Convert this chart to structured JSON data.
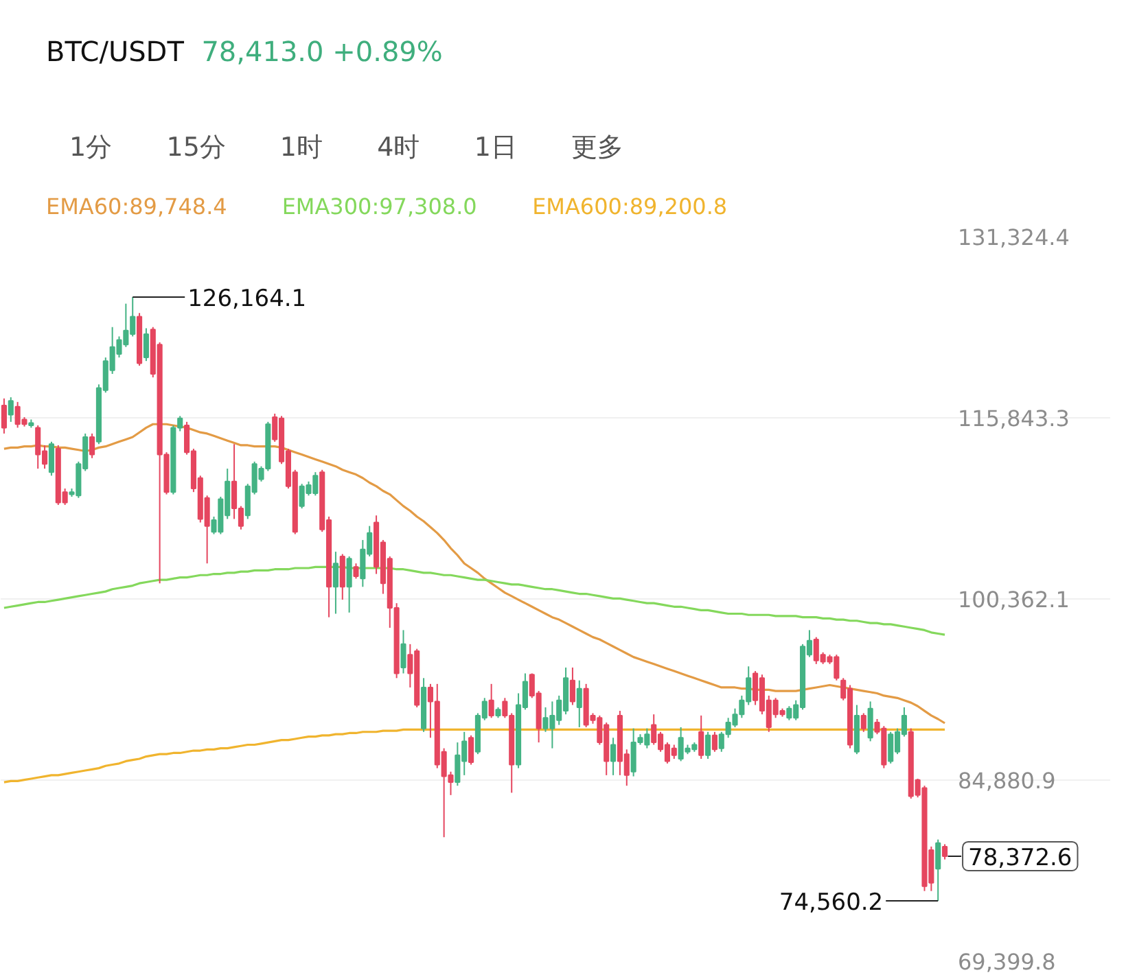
{
  "chart_data": {
    "type": "candlestick",
    "title": "BTC/USDT",
    "subtitle": "78,413.0 +0.89%",
    "categories": [
      null,
      null,
      null,
      null,
      null,
      null,
      null,
      null,
      null,
      null,
      null,
      null,
      null,
      null,
      null,
      null,
      null,
      null,
      null,
      null,
      null,
      null,
      null,
      null,
      null,
      null,
      null,
      null,
      null,
      null,
      null,
      null,
      null,
      null,
      null,
      null,
      null,
      null,
      null,
      null,
      null,
      null,
      null,
      null,
      null,
      null,
      null,
      null,
      null,
      null,
      null,
      null,
      null,
      null,
      null,
      null,
      null,
      null,
      null,
      null,
      null,
      null,
      null,
      null,
      null,
      null,
      null,
      null,
      null,
      null,
      null,
      null,
      null,
      null,
      null,
      null,
      null,
      null,
      null,
      null,
      null,
      null,
      null,
      null,
      null,
      null,
      null,
      null,
      null,
      null,
      null,
      null,
      null,
      null,
      null,
      null,
      null,
      null,
      null,
      null,
      null,
      null,
      null,
      null,
      null,
      null,
      null,
      null,
      null,
      null,
      null,
      null,
      null,
      null,
      null,
      null,
      null,
      null,
      null,
      null,
      null,
      null,
      null,
      null,
      null,
      null,
      null,
      null,
      null,
      null,
      null,
      null,
      null,
      null,
      null,
      null,
      null,
      null,
      null,
      null
    ],
    "ohlc": [
      [
        116900,
        117500,
        114500,
        115000
      ],
      [
        116100,
        117600,
        115500,
        117300
      ],
      [
        116800,
        117200,
        115000,
        115300
      ],
      [
        115700,
        115900,
        115100,
        115300
      ],
      [
        115200,
        115700,
        115000,
        115400
      ],
      [
        115000,
        115200,
        111500,
        112700
      ],
      [
        113000,
        113500,
        111500,
        111900
      ],
      [
        111200,
        113800,
        110900,
        113600
      ],
      [
        113200,
        113500,
        108400,
        108600
      ],
      [
        109500,
        109800,
        108400,
        108600
      ],
      [
        109300,
        109800,
        109100,
        109500
      ],
      [
        109200,
        112100,
        109000,
        111900
      ],
      [
        111500,
        114500,
        111300,
        114200
      ],
      [
        114200,
        114500,
        112400,
        112700
      ],
      [
        113800,
        118700,
        113600,
        118400
      ],
      [
        118200,
        121000,
        118000,
        120700
      ],
      [
        119900,
        123600,
        119600,
        121900
      ],
      [
        121300,
        122800,
        121000,
        122500
      ],
      [
        122100,
        125600,
        121900,
        123300
      ],
      [
        123000,
        126164.1,
        122800,
        124500
      ],
      [
        124500,
        124800,
        120300,
        120500
      ],
      [
        121000,
        123500,
        120700,
        123000
      ],
      [
        123400,
        123600,
        119300,
        119600
      ],
      [
        122100,
        122300,
        101700,
        112700
      ],
      [
        112700,
        112900,
        109300,
        109500
      ],
      [
        109500,
        115200,
        109300,
        115000
      ],
      [
        115000,
        116000,
        114700,
        115800
      ],
      [
        115200,
        115500,
        112700,
        112900
      ],
      [
        113000,
        113200,
        109500,
        109800
      ],
      [
        110700,
        110900,
        106900,
        107200
      ],
      [
        109000,
        109200,
        103400,
        106600
      ],
      [
        106100,
        107400,
        105900,
        107100
      ],
      [
        106100,
        109100,
        105900,
        108900
      ],
      [
        107500,
        111500,
        107200,
        110400
      ],
      [
        110400,
        113600,
        107200,
        108100
      ],
      [
        108100,
        108300,
        106300,
        106600
      ],
      [
        107500,
        110200,
        107200,
        110000
      ],
      [
        109500,
        112100,
        109300,
        111900
      ],
      [
        110600,
        111700,
        110400,
        111500
      ],
      [
        111500,
        115500,
        111300,
        115300
      ],
      [
        115900,
        116200,
        113800,
        114000
      ],
      [
        115800,
        116000,
        111900,
        112100
      ],
      [
        113000,
        113200,
        109800,
        110000
      ],
      [
        111200,
        111400,
        105900,
        106100
      ],
      [
        108300,
        110200,
        108100,
        110000
      ],
      [
        109400,
        110400,
        109200,
        110100
      ],
      [
        109400,
        111200,
        109200,
        110900
      ],
      [
        111200,
        111400,
        106100,
        106300
      ],
      [
        107100,
        107400,
        98800,
        101400
      ],
      [
        101400,
        104400,
        99100,
        103400
      ],
      [
        104000,
        104200,
        100300,
        101400
      ],
      [
        101400,
        104000,
        99200,
        103800
      ],
      [
        103100,
        103400,
        102100,
        102300
      ],
      [
        102100,
        105400,
        101400,
        104600
      ],
      [
        104200,
        106600,
        104000,
        106000
      ],
      [
        106900,
        107500,
        102500,
        103100
      ],
      [
        105200,
        105400,
        100800,
        101700
      ],
      [
        103800,
        104000,
        97900,
        99600
      ],
      [
        99600,
        100000,
        93600,
        94000
      ],
      [
        94500,
        97700,
        94000,
        96500
      ],
      [
        95600,
        96500,
        92800,
        94000
      ],
      [
        95900,
        96100,
        91100,
        91300
      ],
      [
        89300,
        93600,
        89000,
        92800
      ],
      [
        92800,
        93100,
        88500,
        91600
      ],
      [
        91600,
        93100,
        85900,
        86200
      ],
      [
        87300,
        87600,
        80000,
        85200
      ],
      [
        85300,
        85600,
        83600,
        84700
      ],
      [
        84700,
        88100,
        84400,
        87000
      ],
      [
        86500,
        89000,
        85300,
        88200
      ],
      [
        88500,
        88700,
        86200,
        86400
      ],
      [
        87300,
        90600,
        87100,
        90400
      ],
      [
        90200,
        91900,
        90000,
        91600
      ],
      [
        91700,
        93100,
        90200,
        90400
      ],
      [
        90400,
        91100,
        90200,
        90900
      ],
      [
        91600,
        91900,
        90200,
        90400
      ],
      [
        90400,
        90600,
        83800,
        86200
      ],
      [
        86200,
        92300,
        85900,
        91300
      ],
      [
        91100,
        94000,
        90900,
        93300
      ],
      [
        93900,
        94000,
        91900,
        92100
      ],
      [
        92300,
        92500,
        88100,
        89300
      ],
      [
        89300,
        91100,
        89000,
        90200
      ],
      [
        89300,
        91600,
        87600,
        90400
      ],
      [
        90000,
        92100,
        89600,
        91700
      ],
      [
        90800,
        94500,
        90500,
        93600
      ],
      [
        93400,
        94500,
        91300,
        91600
      ],
      [
        91100,
        93400,
        89400,
        92700
      ],
      [
        92700,
        93100,
        89400,
        89600
      ],
      [
        90400,
        90600,
        89700,
        90000
      ],
      [
        90200,
        90400,
        87900,
        88100
      ],
      [
        89600,
        89800,
        85300,
        86500
      ],
      [
        86500,
        88500,
        85300,
        87900
      ],
      [
        90400,
        90800,
        85300,
        86500
      ],
      [
        87100,
        87500,
        84400,
        85300
      ],
      [
        85600,
        89300,
        85200,
        88100
      ],
      [
        88100,
        88800,
        87900,
        88500
      ],
      [
        87900,
        89300,
        87600,
        88800
      ],
      [
        89600,
        90500,
        87900,
        88100
      ],
      [
        88800,
        89000,
        87300,
        87500
      ],
      [
        87900,
        88100,
        86300,
        86500
      ],
      [
        87600,
        87900,
        86700,
        87000
      ],
      [
        86700,
        89400,
        86500,
        88500
      ],
      [
        87300,
        87900,
        87100,
        87600
      ],
      [
        87500,
        88100,
        87300,
        87900
      ],
      [
        89000,
        90400,
        86700,
        87000
      ],
      [
        87000,
        89000,
        86700,
        88700
      ],
      [
        88700,
        89000,
        87300,
        87500
      ],
      [
        87600,
        89000,
        87300,
        88800
      ],
      [
        88800,
        90200,
        88500,
        89800
      ],
      [
        89600,
        91000,
        89400,
        90500
      ],
      [
        90500,
        92100,
        90200,
        91700
      ],
      [
        91600,
        94600,
        91300,
        93600
      ],
      [
        94000,
        94200,
        91300,
        91700
      ],
      [
        93600,
        93900,
        90500,
        90800
      ],
      [
        91700,
        92100,
        89000,
        89400
      ],
      [
        91700,
        91900,
        90200,
        90500
      ],
      [
        90800,
        91000,
        90300,
        90500
      ],
      [
        90200,
        91200,
        90000,
        91000
      ],
      [
        90200,
        91700,
        90000,
        91300
      ],
      [
        91100,
        96500,
        90900,
        96300
      ],
      [
        95600,
        97700,
        95400,
        96800
      ],
      [
        96900,
        97100,
        94800,
        95100
      ],
      [
        95600,
        95800,
        94800,
        95000
      ],
      [
        95400,
        95600,
        94800,
        95000
      ],
      [
        95400,
        95600,
        93400,
        93600
      ],
      [
        93400,
        93600,
        91700,
        91900
      ],
      [
        92700,
        93000,
        87600,
        87900
      ],
      [
        87300,
        91300,
        87100,
        90400
      ],
      [
        90400,
        90600,
        89000,
        89300
      ],
      [
        88500,
        91600,
        88200,
        91000
      ],
      [
        89800,
        90100,
        88800,
        89000
      ],
      [
        89300,
        89500,
        85900,
        86200
      ],
      [
        86500,
        89000,
        86300,
        88800
      ],
      [
        87300,
        89300,
        87100,
        89000
      ],
      [
        88800,
        91100,
        88600,
        90400
      ],
      [
        89000,
        89300,
        83300,
        83500
      ],
      [
        84900,
        85000,
        83400,
        83600
      ],
      [
        84200,
        84400,
        75400,
        75800
      ],
      [
        78900,
        79200,
        75400,
        76100
      ],
      [
        77300,
        79800,
        74560.2,
        79500
      ],
      [
        79200,
        79400,
        78100,
        78372.6
      ]
    ],
    "colors": [
      "#e5465f",
      "#44b384",
      "#e5465f",
      "#e5465f",
      "#44b384",
      "#e5465f",
      "#e5465f",
      "#44b384",
      "#e5465f",
      "#e5465f",
      "#44b384",
      "#44b384",
      "#44b384",
      "#e5465f",
      "#44b384",
      "#44b384",
      "#44b384",
      "#44b384",
      "#44b384",
      "#44b384",
      "#e5465f",
      "#44b384",
      "#e5465f",
      "#e5465f",
      "#e5465f",
      "#44b384",
      "#44b384",
      "#e5465f",
      "#e5465f",
      "#e5465f",
      "#e5465f",
      "#44b384",
      "#44b384",
      "#44b384",
      "#e5465f",
      "#e5465f",
      "#44b384",
      "#44b384",
      "#44b384",
      "#44b384",
      "#e5465f",
      "#e5465f",
      "#e5465f",
      "#e5465f",
      "#44b384",
      "#44b384",
      "#44b384",
      "#e5465f",
      "#e5465f",
      "#44b384",
      "#e5465f",
      "#44b384",
      "#e5465f",
      "#44b384",
      "#44b384",
      "#e5465f",
      "#e5465f",
      "#e5465f",
      "#e5465f",
      "#44b384",
      "#e5465f",
      "#e5465f",
      "#44b384",
      "#e5465f",
      "#e5465f",
      "#e5465f",
      "#e5465f",
      "#44b384",
      "#44b384",
      "#e5465f",
      "#44b384",
      "#44b384",
      "#e5465f",
      "#44b384",
      "#e5465f",
      "#e5465f",
      "#44b384",
      "#44b384",
      "#e5465f",
      "#e5465f",
      "#44b384",
      "#44b384",
      "#44b384",
      "#44b384",
      "#e5465f",
      "#44b384",
      "#e5465f",
      "#e5465f",
      "#e5465f",
      "#e5465f",
      "#44b384",
      "#e5465f",
      "#e5465f",
      "#44b384",
      "#44b384",
      "#44b384",
      "#e5465f",
      "#e5465f",
      "#e5465f",
      "#e5465f",
      "#44b384",
      "#44b384",
      "#44b384",
      "#e5465f",
      "#44b384",
      "#e5465f",
      "#44b384",
      "#44b384",
      "#44b384",
      "#44b384",
      "#44b384",
      "#e5465f",
      "#e5465f",
      "#e5465f",
      "#e5465f",
      "#e5465f",
      "#44b384",
      "#44b384",
      "#44b384",
      "#44b384",
      "#e5465f",
      "#e5465f",
      "#e5465f",
      "#e5465f",
      "#e5465f",
      "#e5465f",
      "#44b384",
      "#e5465f",
      "#44b384",
      "#e5465f",
      "#e5465f",
      "#44b384",
      "#44b384",
      "#44b384",
      "#e5465f",
      "#e5465f",
      "#e5465f",
      "#e5465f",
      "#44b384",
      "#e5465f"
    ],
    "series": [
      {
        "name": "EMA60:89,748.4",
        "type": "line",
        "color": "#e39b45",
        "values": [
          113200,
          113300,
          113300,
          113400,
          113400,
          113500,
          113400,
          113400,
          113300,
          113300,
          113200,
          113100,
          113000,
          113100,
          113300,
          113400,
          113600,
          113800,
          114000,
          114200,
          114600,
          115000,
          115300,
          115300,
          115300,
          115200,
          115100,
          115000,
          114800,
          114600,
          114500,
          114300,
          114100,
          113900,
          113700,
          113500,
          113500,
          113400,
          113400,
          113400,
          113400,
          113300,
          113100,
          112900,
          112700,
          112500,
          112300,
          112100,
          111900,
          111700,
          111400,
          111200,
          111000,
          110700,
          110300,
          110000,
          109600,
          109300,
          108800,
          108300,
          107900,
          107400,
          107000,
          106500,
          106000,
          105400,
          104700,
          104100,
          103400,
          103000,
          102600,
          102100,
          101700,
          101300,
          100900,
          100600,
          100300,
          100000,
          99700,
          99400,
          99100,
          98800,
          98600,
          98300,
          98000,
          97700,
          97400,
          97100,
          96900,
          96600,
          96300,
          96000,
          95700,
          95400,
          95200,
          95000,
          94800,
          94600,
          94400,
          94200,
          94000,
          93800,
          93600,
          93400,
          93200,
          93000,
          92800,
          92800,
          92800,
          92700,
          92700,
          92600,
          92600,
          92600,
          92500,
          92500,
          92500,
          92500,
          92600,
          92700,
          92800,
          92900,
          93000,
          92900,
          92800,
          92700,
          92600,
          92500,
          92400,
          92300,
          92100,
          92000,
          91900,
          91700,
          91500,
          91200,
          90800,
          90400,
          90100,
          89748.4
        ]
      },
      {
        "name": "EMA300:97,308.0",
        "type": "line",
        "color": "#84d85c",
        "values": [
          99600,
          99700,
          99800,
          99900,
          100000,
          100100,
          100100,
          100200,
          100300,
          100400,
          100500,
          100600,
          100700,
          100800,
          100900,
          101000,
          101200,
          101300,
          101400,
          101500,
          101700,
          101800,
          101900,
          102000,
          102000,
          102100,
          102200,
          102200,
          102300,
          102400,
          102400,
          102500,
          102500,
          102600,
          102600,
          102700,
          102700,
          102800,
          102800,
          102800,
          102900,
          102900,
          102900,
          103000,
          103000,
          103000,
          103100,
          103100,
          103100,
          103100,
          103100,
          103000,
          103000,
          103000,
          103000,
          103000,
          103000,
          103000,
          102900,
          102900,
          102800,
          102700,
          102600,
          102600,
          102500,
          102400,
          102400,
          102300,
          102200,
          102100,
          102000,
          102000,
          101900,
          101800,
          101700,
          101600,
          101600,
          101500,
          101400,
          101300,
          101200,
          101200,
          101100,
          101000,
          100900,
          100800,
          100800,
          100700,
          100600,
          100500,
          100400,
          100400,
          100300,
          100200,
          100100,
          100000,
          100000,
          99900,
          99800,
          99700,
          99700,
          99600,
          99500,
          99400,
          99400,
          99300,
          99200,
          99100,
          99100,
          99100,
          99000,
          99000,
          99000,
          99000,
          98900,
          98900,
          98900,
          98900,
          98800,
          98800,
          98800,
          98700,
          98700,
          98600,
          98600,
          98500,
          98500,
          98400,
          98300,
          98300,
          98200,
          98200,
          98100,
          98000,
          97900,
          97800,
          97700,
          97500,
          97400,
          97308.0
        ]
      },
      {
        "name": "EMA600:89,200.8",
        "type": "line",
        "color": "#f0b42e",
        "values": [
          84700,
          84800,
          84800,
          84900,
          85000,
          85100,
          85200,
          85300,
          85300,
          85400,
          85500,
          85600,
          85700,
          85800,
          85900,
          86100,
          86200,
          86300,
          86500,
          86600,
          86700,
          86900,
          87000,
          87100,
          87100,
          87200,
          87200,
          87300,
          87400,
          87400,
          87500,
          87500,
          87600,
          87600,
          87700,
          87800,
          87900,
          87900,
          88000,
          88100,
          88200,
          88300,
          88300,
          88400,
          88500,
          88600,
          88600,
          88700,
          88700,
          88800,
          88800,
          88900,
          88900,
          89000,
          89000,
          89000,
          89100,
          89100,
          89100,
          89200,
          89200,
          89200,
          89200,
          89200,
          89200,
          89200,
          89200,
          89200,
          89200,
          89200,
          89200,
          89200,
          89200,
          89200,
          89200,
          89200,
          89200,
          89200,
          89200,
          89200,
          89200,
          89200,
          89200,
          89200,
          89200,
          89200,
          89200,
          89200,
          89200,
          89200,
          89200,
          89200,
          89200,
          89200,
          89200,
          89200,
          89200,
          89200,
          89200,
          89200,
          89200,
          89200,
          89200,
          89200,
          89200,
          89200,
          89200,
          89200,
          89200,
          89200,
          89200,
          89200,
          89200,
          89200,
          89200,
          89200,
          89200,
          89200,
          89200,
          89200,
          89200,
          89200,
          89200,
          89200,
          89200,
          89200,
          89200,
          89200,
          89200,
          89200,
          89200,
          89200,
          89200,
          89200,
          89200,
          89200,
          89200,
          89200,
          89200,
          89200.8
        ]
      }
    ],
    "ylim": [
      69399.8,
      131324.4
    ],
    "yticks": [
      {
        "value": 69399.8,
        "label": "69,399.8"
      },
      {
        "value": 84880.9,
        "label": "84,880.9"
      },
      {
        "value": 100362.1,
        "label": "100,362.1"
      },
      {
        "value": 115843.3,
        "label": "115,843.3"
      },
      {
        "value": 131324.4,
        "label": "131,324.4"
      }
    ],
    "annotations": [
      "1分",
      "15分",
      "1时",
      "4时",
      "1日",
      "更多",
      "126,164.1",
      "74,560.2",
      "78,372.6"
    ],
    "grid": "y",
    "legend": "top left",
    "tick_labels": "y"
  }
}
